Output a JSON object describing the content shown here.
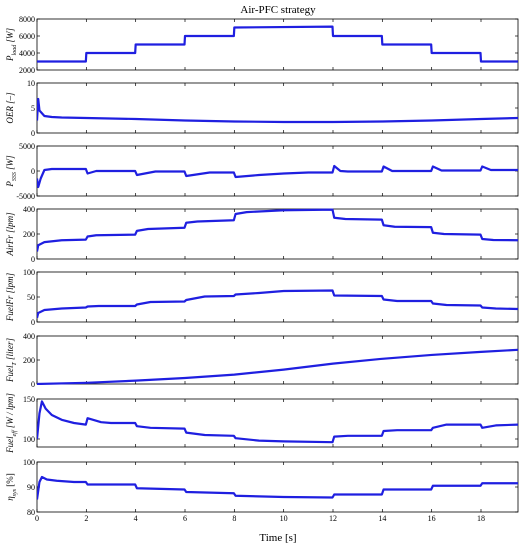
{
  "figure": {
    "title": "Air-PFC strategy",
    "xlabel": "Time [s]",
    "xlim": [
      0,
      19.5
    ],
    "xticks": [
      0,
      2,
      4,
      6,
      8,
      10,
      12,
      14,
      16,
      18
    ],
    "line_color": "#1f1fe0"
  },
  "chart_data": [
    {
      "type": "line",
      "name": "P_load",
      "ylabel": "P_load [W]",
      "ylim": [
        2000,
        8000
      ],
      "yticks": [
        2000,
        4000,
        6000,
        8000
      ],
      "x": [
        0,
        1.98,
        2.0,
        3.98,
        4.0,
        5.98,
        6.0,
        7.98,
        8.0,
        11.98,
        12.0,
        13.98,
        14.0,
        15.98,
        16.0,
        17.98,
        18.0,
        19.5
      ],
      "y": [
        3000,
        3000,
        4000,
        4000,
        5000,
        5000,
        6000,
        6000,
        7000,
        7100,
        6000,
        6000,
        5000,
        5000,
        4000,
        4000,
        3000,
        3000
      ]
    },
    {
      "type": "line",
      "name": "OER",
      "ylabel": "OER [–]",
      "ylim": [
        0,
        10
      ],
      "yticks": [
        0,
        5,
        10
      ],
      "x": [
        0,
        0.05,
        0.1,
        0.3,
        0.6,
        1.0,
        2.0,
        4.0,
        6.0,
        8.0,
        10.0,
        12.0,
        14.0,
        16.0,
        18.0,
        19.5
      ],
      "y": [
        2.5,
        6.8,
        4.5,
        3.4,
        3.2,
        3.1,
        3.0,
        2.8,
        2.5,
        2.3,
        2.2,
        2.2,
        2.3,
        2.5,
        2.8,
        3.0
      ]
    },
    {
      "type": "line",
      "name": "P_SSS",
      "ylabel": "P_SSS [W]",
      "ylim": [
        -5000,
        5000
      ],
      "yticks": [
        -5000,
        0,
        5000
      ],
      "x": [
        0,
        0.05,
        0.15,
        0.3,
        0.6,
        1.0,
        1.98,
        2.05,
        2.4,
        3.98,
        4.05,
        4.8,
        5.98,
        6.05,
        7.0,
        7.98,
        8.05,
        9.0,
        10.0,
        11.0,
        11.98,
        12.05,
        12.3,
        12.6,
        13.98,
        14.05,
        14.4,
        15.98,
        16.05,
        16.4,
        17.98,
        18.05,
        18.4,
        19.5
      ],
      "y": [
        -1500,
        -3200,
        -1500,
        200,
        400,
        400,
        400,
        -500,
        0,
        0,
        -800,
        -100,
        -100,
        -1000,
        -300,
        -300,
        -1200,
        -800,
        -500,
        -300,
        -300,
        1000,
        0,
        -100,
        -100,
        900,
        0,
        0,
        900,
        100,
        100,
        900,
        200,
        200
      ]
    },
    {
      "type": "line",
      "name": "AirFr",
      "ylabel": "AirFr [lpm]",
      "ylim": [
        0,
        400
      ],
      "yticks": [
        0,
        200,
        400
      ],
      "x": [
        0,
        0.05,
        0.3,
        1.0,
        1.98,
        2.05,
        2.4,
        3.98,
        4.05,
        4.5,
        5.98,
        6.05,
        6.5,
        7.98,
        8.05,
        8.5,
        10.0,
        11.98,
        12.05,
        12.5,
        13.98,
        14.05,
        14.5,
        15.98,
        16.05,
        16.5,
        17.98,
        18.05,
        18.5,
        19.5
      ],
      "y": [
        60,
        110,
        135,
        150,
        155,
        180,
        190,
        195,
        225,
        240,
        250,
        290,
        300,
        310,
        360,
        375,
        390,
        395,
        330,
        320,
        315,
        270,
        258,
        255,
        210,
        200,
        195,
        160,
        152,
        150
      ]
    },
    {
      "type": "line",
      "name": "FuelFr",
      "ylabel": "FuelFr [lpm]",
      "ylim": [
        0,
        100
      ],
      "yticks": [
        0,
        50,
        100
      ],
      "x": [
        0,
        0.05,
        0.3,
        1.0,
        1.98,
        2.05,
        2.5,
        3.98,
        4.05,
        4.6,
        5.98,
        6.05,
        6.8,
        7.98,
        8.05,
        9.0,
        10.0,
        11.98,
        12.05,
        13.98,
        14.05,
        14.6,
        15.98,
        16.05,
        16.6,
        17.98,
        18.05,
        18.6,
        19.5
      ],
      "y": [
        8,
        18,
        24,
        27,
        29,
        31,
        32,
        32,
        35,
        40,
        41,
        44,
        51,
        52,
        55,
        58,
        62,
        63,
        53,
        52,
        45,
        42,
        42,
        37,
        34,
        33,
        29,
        27,
        26
      ]
    },
    {
      "type": "line",
      "name": "Fuel_T",
      "ylabel": "Fuel_T [liter]",
      "ylim": [
        0,
        400
      ],
      "yticks": [
        0,
        200,
        400
      ],
      "x": [
        0,
        2,
        4,
        6,
        8,
        10,
        12,
        14,
        16,
        18,
        19.5
      ],
      "y": [
        0,
        10,
        28,
        50,
        78,
        120,
        170,
        210,
        242,
        268,
        285
      ]
    },
    {
      "type": "line",
      "name": "Fuel_eff",
      "ylabel": "Fuel_eff [W / lpm]",
      "ylim": [
        90,
        150
      ],
      "yticks": [
        100,
        150
      ],
      "x": [
        0,
        0.1,
        0.2,
        0.35,
        0.6,
        1.0,
        1.5,
        1.98,
        2.05,
        2.6,
        3.0,
        3.98,
        4.05,
        4.6,
        5.98,
        6.05,
        6.8,
        7.98,
        8.05,
        9.0,
        10.0,
        11.98,
        12.05,
        12.6,
        13.98,
        14.05,
        14.6,
        15.98,
        16.05,
        16.6,
        17.98,
        18.05,
        18.6,
        19.5
      ],
      "y": [
        100,
        132,
        147,
        138,
        130,
        124,
        120,
        118,
        126,
        121,
        120,
        120,
        116,
        114,
        113,
        108,
        105,
        104,
        101,
        98,
        97,
        96,
        103,
        104,
        104,
        110,
        111,
        111,
        114,
        118,
        118,
        114,
        117,
        118
      ]
    },
    {
      "type": "line",
      "name": "eta_sys",
      "ylabel": "η_sys [%]",
      "ylim": [
        80,
        100
      ],
      "yticks": [
        80,
        90,
        100
      ],
      "x": [
        0,
        0.1,
        0.2,
        0.4,
        0.8,
        1.5,
        1.98,
        2.05,
        3.98,
        4.05,
        5.98,
        6.05,
        7.98,
        8.05,
        10.0,
        11.98,
        12.05,
        13.98,
        14.05,
        15.98,
        16.05,
        17.98,
        18.05,
        19.5
      ],
      "y": [
        85,
        92,
        94,
        93,
        92.5,
        92,
        92,
        91,
        91,
        89.5,
        89,
        88,
        87.5,
        86.5,
        86,
        85.8,
        87,
        87,
        89,
        89,
        90.5,
        90.5,
        91.5,
        91.5
      ]
    }
  ]
}
